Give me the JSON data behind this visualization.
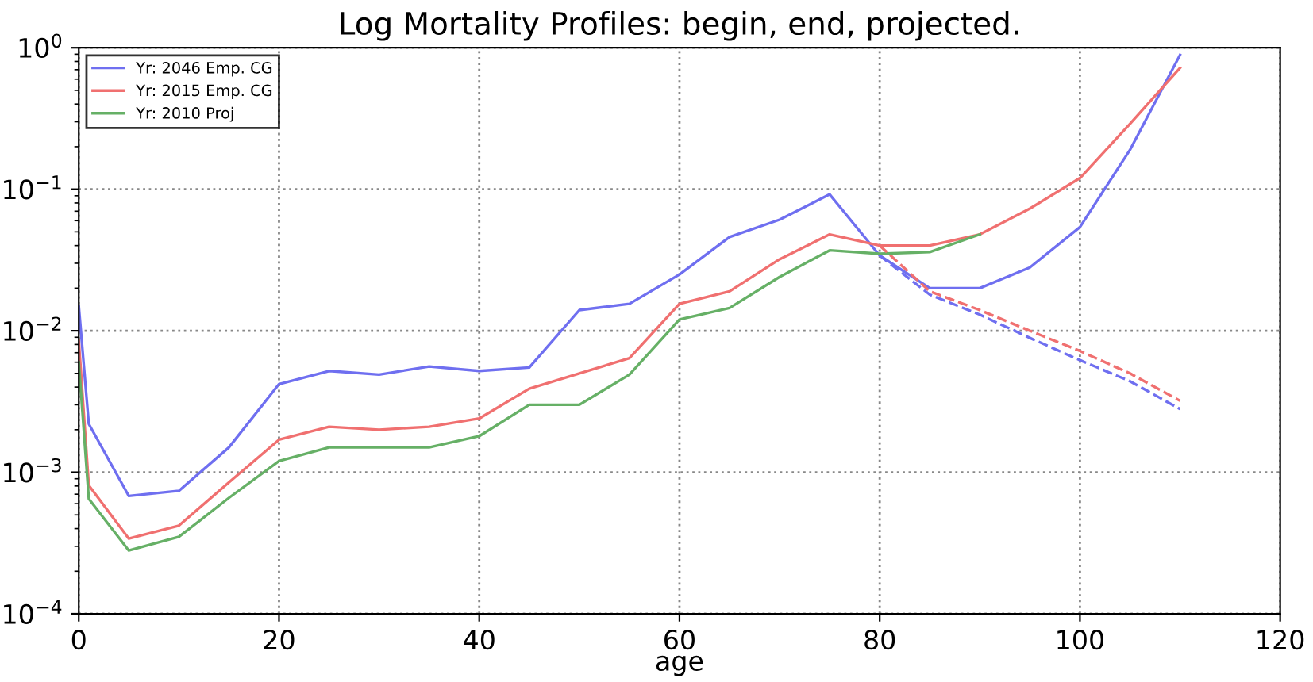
{
  "chart_data": {
    "type": "line",
    "title": "Log Mortality Profiles: begin, end, projected.",
    "xlabel": "age",
    "xlim": [
      0,
      120
    ],
    "xticks": [
      0,
      20,
      40,
      60,
      80,
      100,
      120
    ],
    "ylim": [
      0.0001,
      1
    ],
    "yticks": [
      {
        "value": 0.0001,
        "label": "10$^{−4}$"
      },
      {
        "value": 0.001,
        "label": "10$^{−3}$"
      },
      {
        "value": 0.01,
        "label": "10$^{−2}$"
      },
      {
        "value": 0.1,
        "label": "10$^{−1}$"
      },
      {
        "value": 1,
        "label": "10$^{0}$"
      }
    ],
    "log": "y",
    "grid": true,
    "legend": "top left",
    "line_style": "solid",
    "series": [
      {
        "name": "Yr: 2046 Emp. CG",
        "color": "#6f6ff0",
        "x": [
          0,
          1,
          5,
          10,
          15,
          20,
          25,
          30,
          35,
          40,
          45,
          50,
          55,
          60,
          65,
          70,
          75,
          80,
          85,
          90,
          95,
          100,
          105,
          110
        ],
        "values": [
          0.015,
          0.0022,
          0.00068,
          0.00074,
          0.0015,
          0.0042,
          0.0052,
          0.0049,
          0.0056,
          0.0052,
          0.0055,
          0.014,
          0.0155,
          0.025,
          0.046,
          0.061,
          0.092,
          0.034,
          0.02,
          0.02,
          0.028,
          0.054,
          0.19,
          0.89
        ]
      },
      {
        "name": "Yr: 2015 Emp. CG",
        "color": "#f07070",
        "x": [
          0,
          1,
          5,
          10,
          15,
          20,
          25,
          30,
          35,
          40,
          45,
          50,
          55,
          60,
          65,
          70,
          75,
          80,
          85,
          90,
          95,
          100,
          105,
          110
        ],
        "values": [
          0.0085,
          0.00081,
          0.00034,
          0.00042,
          0.00085,
          0.0017,
          0.0021,
          0.002,
          0.0021,
          0.0024,
          0.0039,
          0.005,
          0.0064,
          0.0155,
          0.019,
          0.032,
          0.048,
          0.04,
          0.04,
          0.048,
          0.073,
          0.12,
          0.29,
          0.72
        ]
      },
      {
        "name": "Yr: 2010 Proj",
        "color": "#66b066",
        "x": [
          0,
          1,
          5,
          10,
          15,
          20,
          25,
          30,
          35,
          40,
          45,
          50,
          55,
          60,
          65,
          70,
          75,
          80,
          85,
          90
        ],
        "values": [
          0.006,
          0.00065,
          0.00028,
          0.00035,
          0.00066,
          0.0012,
          0.0015,
          0.0015,
          0.0015,
          0.0018,
          0.003,
          0.003,
          0.0049,
          0.012,
          0.0145,
          0.024,
          0.037,
          0.035,
          0.036,
          0.048
        ]
      },
      {
        "color": "#6f6ff0",
        "line_style": "dashed",
        "x": [
          80,
          85,
          90,
          95,
          100,
          105,
          110
        ],
        "values": [
          0.034,
          0.018,
          0.013,
          0.0089,
          0.0062,
          0.0044,
          0.0028
        ]
      },
      {
        "color": "#f07070",
        "line_style": "dashed",
        "x": [
          80,
          85,
          90,
          95,
          100,
          105,
          110
        ],
        "values": [
          0.04,
          0.019,
          0.014,
          0.01,
          0.0072,
          0.005,
          0.0032
        ]
      }
    ]
  }
}
